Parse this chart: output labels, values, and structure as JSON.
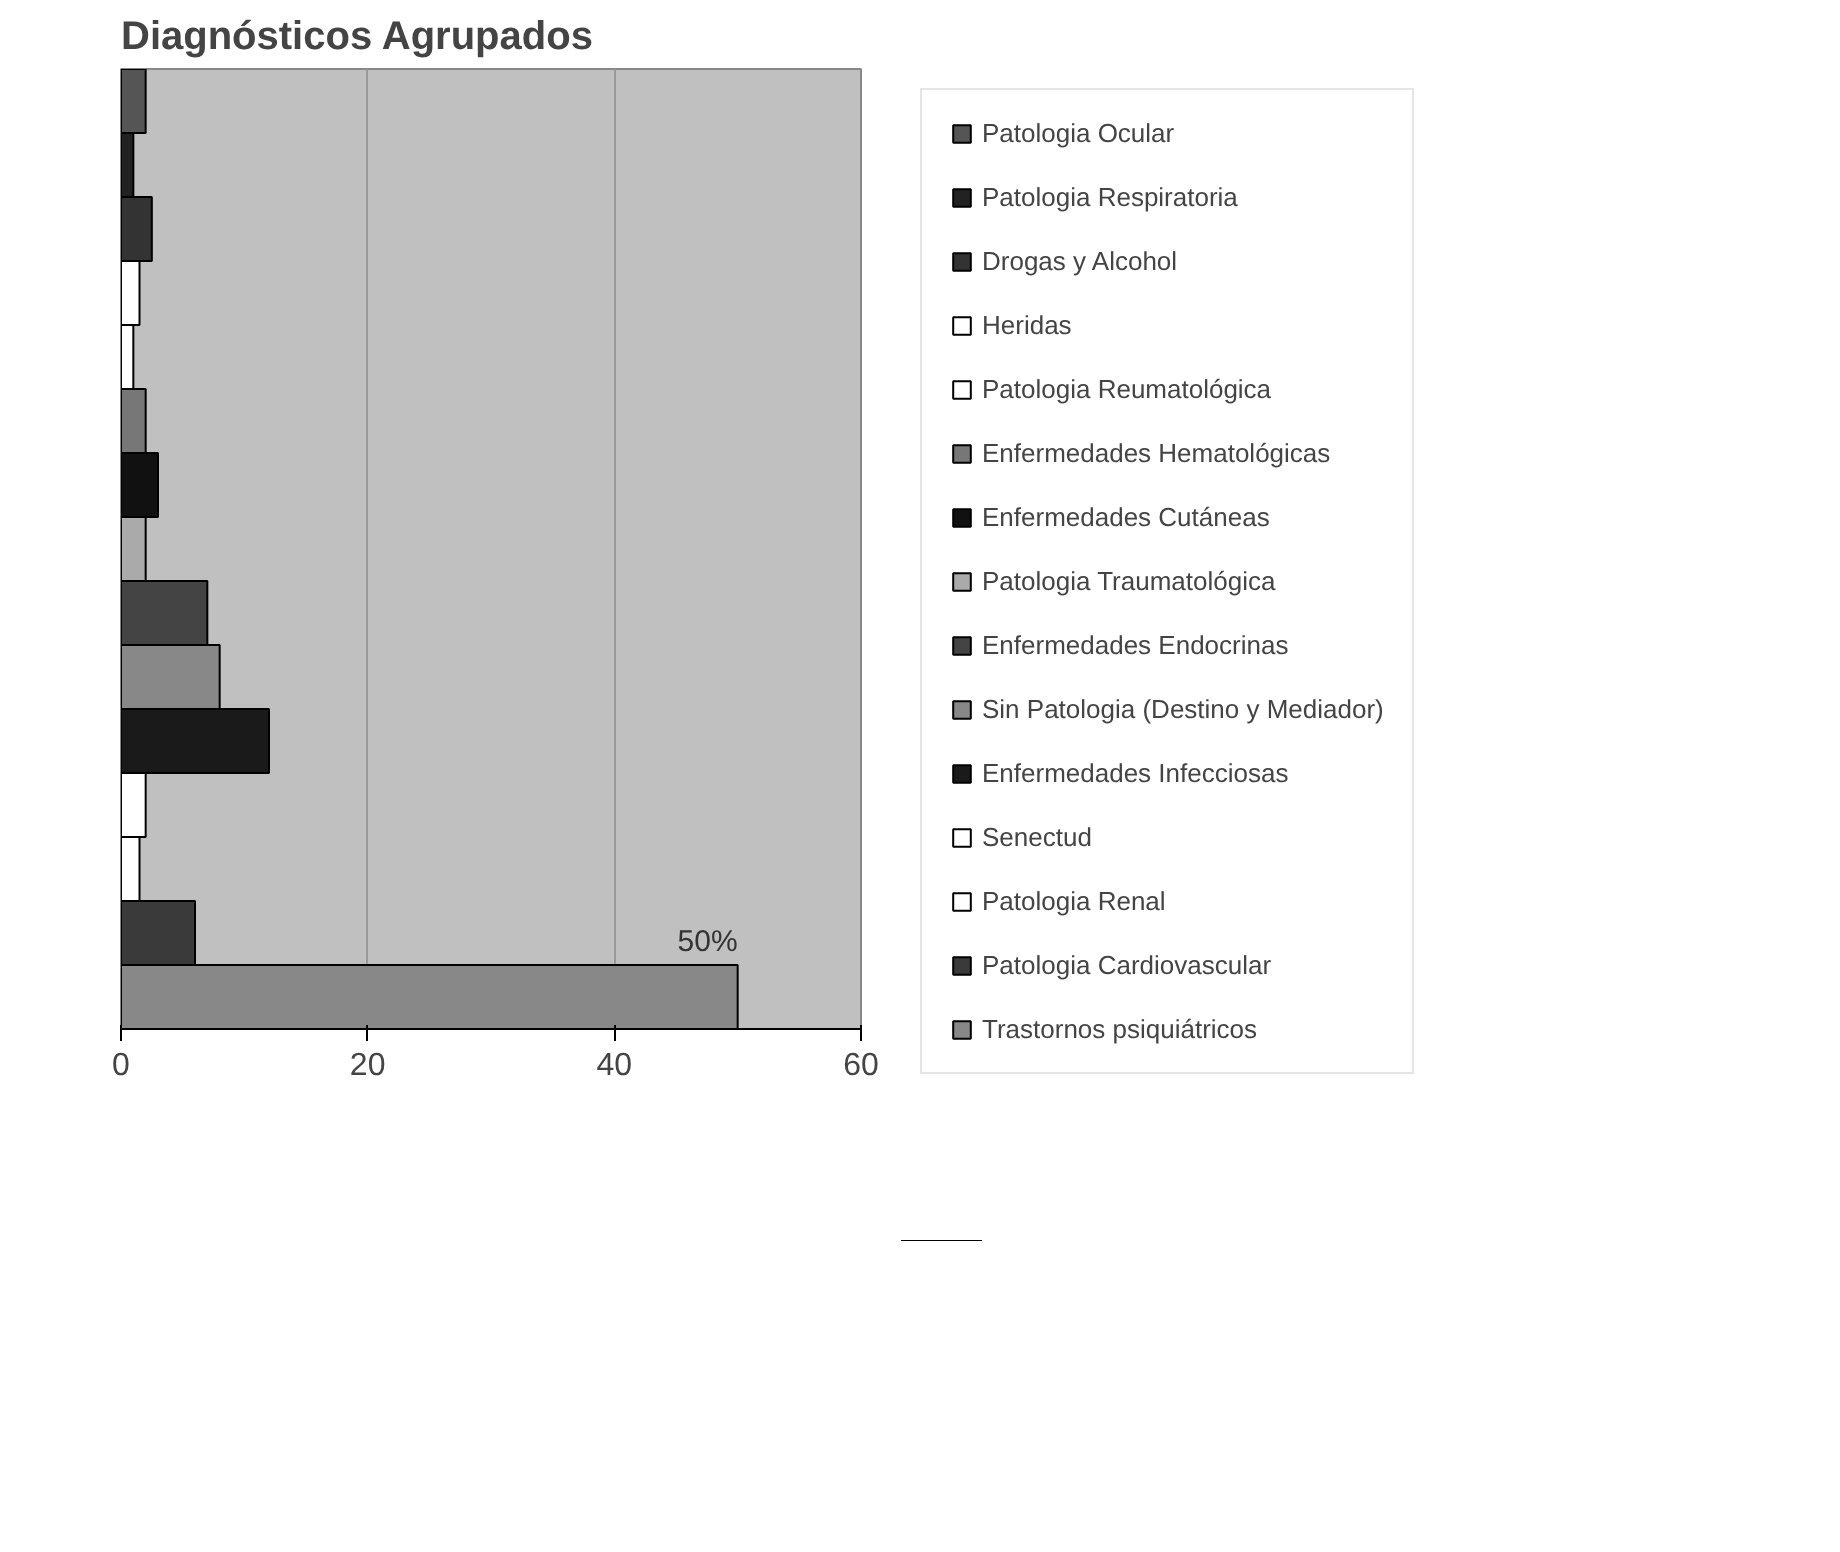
{
  "chart_data": {
    "type": "bar",
    "orientation": "horizontal",
    "title": "Diagnósticos Agrupados",
    "categories": [
      null
    ],
    "series": [
      {
        "name": "Patologia Ocular",
        "color": "#555555",
        "values": [
          2
        ]
      },
      {
        "name": "Patologia Respiratoria",
        "color": "#222222",
        "values": [
          1
        ]
      },
      {
        "name": "Drogas y Alcohol",
        "color": "#333333",
        "values": [
          2.5
        ]
      },
      {
        "name": "Heridas",
        "color": "#ffffff",
        "values": [
          1.5
        ]
      },
      {
        "name": "Patologia Reumatológica",
        "color": "#ffffff",
        "values": [
          1
        ]
      },
      {
        "name": "Enfermedades Hematológicas",
        "color": "#777777",
        "values": [
          2
        ]
      },
      {
        "name": "Enfermedades Cutáneas",
        "color": "#111111",
        "values": [
          3
        ]
      },
      {
        "name": "Patologia Traumatológica",
        "color": "#aaaaaa",
        "values": [
          2
        ]
      },
      {
        "name": "Enfermedades Endocrinas",
        "color": "#444444",
        "values": [
          7
        ]
      },
      {
        "name": "Sin Patologia (Destino y Mediador)",
        "color": "#888888",
        "values": [
          8
        ]
      },
      {
        "name": "Enfermedades Infecciosas",
        "color": "#1a1a1a",
        "values": [
          12
        ]
      },
      {
        "name": "Senectud",
        "color": "#ffffff",
        "values": [
          2
        ]
      },
      {
        "name": "Patologia Renal",
        "color": "#ffffff",
        "values": [
          1.5
        ]
      },
      {
        "name": "Patologia Cardiovascular",
        "color": "#3a3a3a",
        "values": [
          6
        ]
      },
      {
        "name": "Trastornos psiquiátricos",
        "color": "#888888",
        "values": [
          50
        ],
        "value_labels": [
          "50%"
        ]
      }
    ],
    "xlim": [
      0,
      60
    ],
    "xticks": [
      0,
      20,
      40,
      60
    ],
    "grid": "x",
    "legend": "right"
  }
}
